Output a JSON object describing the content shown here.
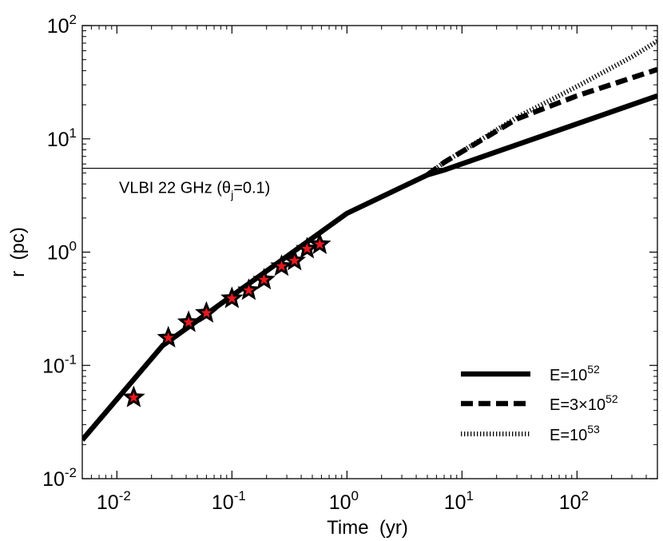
{
  "chart_data": {
    "type": "line",
    "x_scale": "log",
    "y_scale": "log",
    "xlim": [
      0.005,
      500
    ],
    "ylim": [
      0.01,
      100
    ],
    "xlabel": "Time  (yr)",
    "ylabel": "r  (pc)",
    "x_ticks": [
      {
        "value": 0.01,
        "base": "10",
        "exp": "-2"
      },
      {
        "value": 0.1,
        "base": "10",
        "exp": "-1"
      },
      {
        "value": 1,
        "base": "10",
        "exp": "0"
      },
      {
        "value": 10,
        "base": "10",
        "exp": "1"
      },
      {
        "value": 100,
        "base": "10",
        "exp": "2"
      }
    ],
    "y_ticks": [
      {
        "value": 0.01,
        "base": "10",
        "exp": "-2"
      },
      {
        "value": 0.1,
        "base": "10",
        "exp": "-1"
      },
      {
        "value": 1,
        "base": "10",
        "exp": "0"
      },
      {
        "value": 10,
        "base": "10",
        "exp": "1"
      },
      {
        "value": 100,
        "base": "10",
        "exp": "2"
      }
    ],
    "series": [
      {
        "name": "E=10^52",
        "legend_base": "E=10",
        "legend_exp": "52",
        "style": "solid",
        "x": [
          0.005,
          0.025,
          1,
          5,
          7,
          500
        ],
        "y": [
          0.022,
          0.15,
          2.2,
          4.8,
          5.3,
          24
        ]
      },
      {
        "name": "E=3×10^52",
        "legend_base": "E=3×10",
        "legend_exp": "52",
        "style": "dashed",
        "x": [
          5,
          7,
          30,
          100,
          500
        ],
        "y": [
          4.8,
          6.2,
          15,
          24,
          41
        ]
      },
      {
        "name": "E=10^53",
        "legend_base": "E=10",
        "legend_exp": "53",
        "style": "dotted",
        "x": [
          5,
          7,
          30,
          100,
          300,
          500
        ],
        "y": [
          4.8,
          6.2,
          15.5,
          29,
          53,
          73
        ]
      }
    ],
    "observed_points": {
      "marker": "star",
      "fill": "#e8191e",
      "stroke": "#000000",
      "x": [
        0.014,
        0.028,
        0.042,
        0.06,
        0.1,
        0.14,
        0.19,
        0.27,
        0.35,
        0.45,
        0.58
      ],
      "y": [
        0.052,
        0.175,
        0.24,
        0.29,
        0.39,
        0.46,
        0.57,
        0.75,
        0.84,
        1.07,
        1.17
      ]
    },
    "reference_line": {
      "y": 5.5,
      "label_main": "VLBI 22 GHz (θ",
      "label_sub": "j",
      "label_tail": "=0.1)"
    },
    "legend_position": "lower-right",
    "grid": false
  }
}
